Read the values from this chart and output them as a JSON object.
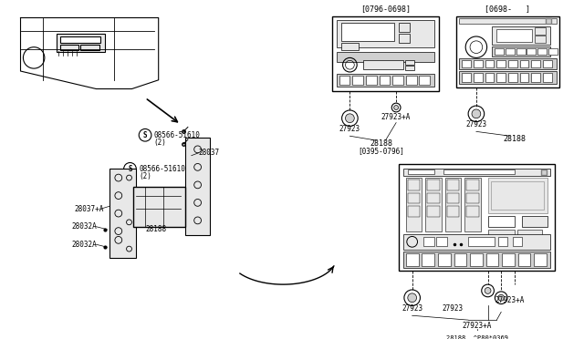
{
  "bg_color": "#ffffff",
  "border_color": "#000000",
  "line_color": "#000000",
  "gray_fill": "#d0d0d0",
  "light_gray": "#e8e8e8",
  "title": "",
  "part_numbers": {
    "28188": "28188",
    "28037": "28037",
    "08566": "08566-51610",
    "27923": "27923",
    "27923A": "27923+A",
    "28037A": "28037+A",
    "28032A": "28032A",
    "part_code": "^P80*0369"
  },
  "date_labels": {
    "top_left": "[0796-0698]",
    "top_right": "[0698-   ]",
    "bottom": "[0395-0796]"
  }
}
